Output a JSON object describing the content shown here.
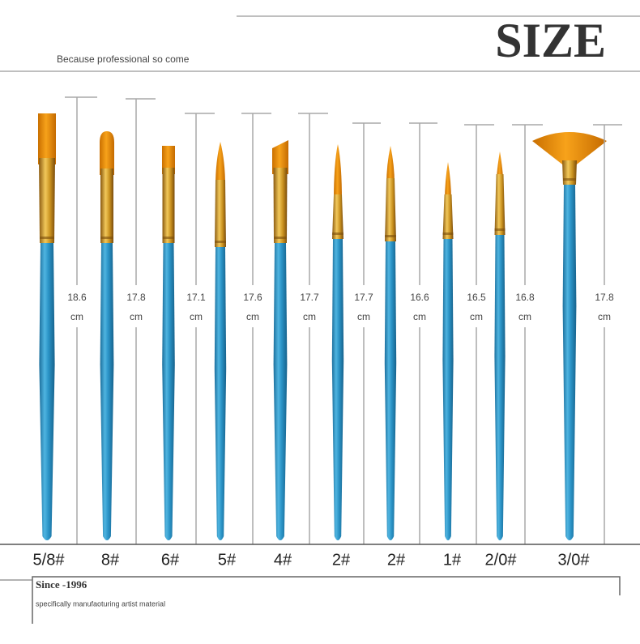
{
  "header": {
    "title": "SIZE",
    "subtitle": "Because professional so come"
  },
  "unit": "cm",
  "brushes": [
    {
      "size": "5/8#",
      "length": 18.6
    },
    {
      "size": "8#",
      "length": 17.8
    },
    {
      "size": "6#",
      "length": 17.1
    },
    {
      "size": "5#",
      "length": 17.6
    },
    {
      "size": "4#",
      "length": 17.7
    },
    {
      "size": "2#",
      "length": 17.7
    },
    {
      "size": "2#",
      "length": 16.6
    },
    {
      "size": "1#",
      "length": 16.5
    },
    {
      "size": "2/0#",
      "length": 16.8
    },
    {
      "size": "3/0#",
      "length": 17.8
    }
  ],
  "footer": {
    "since": "Since -1996",
    "tagline": "specifically manufaoturing artist material"
  }
}
